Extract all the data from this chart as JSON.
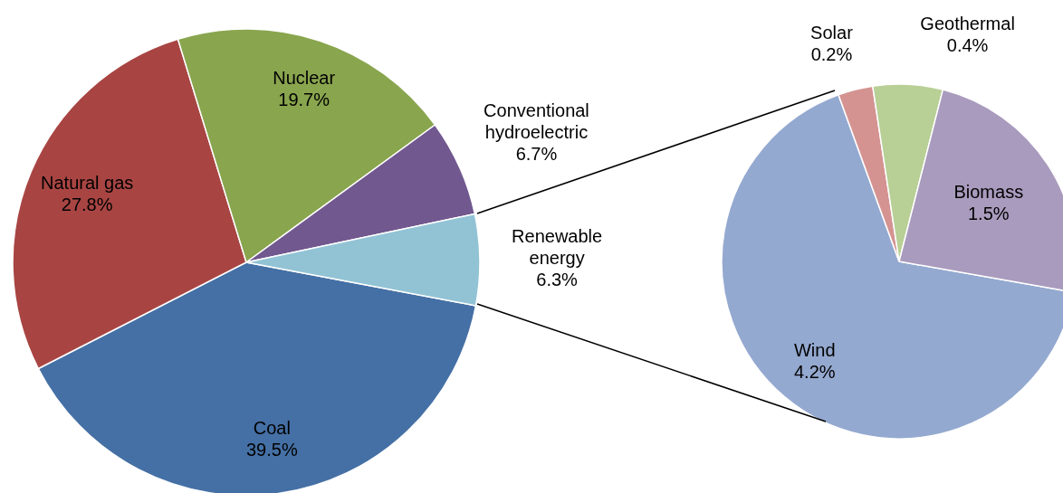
{
  "chart_data": [
    {
      "type": "pie",
      "categories": [
        "Coal",
        "Natural gas",
        "Nuclear",
        "Conventional hydroelectric",
        "Renewable energy"
      ],
      "values": [
        39.5,
        27.8,
        19.7,
        6.7,
        6.3
      ],
      "colors": [
        "#4570a5",
        "#a84543",
        "#89a54e",
        "#71588f",
        "#92c3d5"
      ],
      "value_labels": [
        "39.5%",
        "27.8%",
        "19.7%",
        "6.7%",
        "6.3%"
      ],
      "legend": false
    },
    {
      "type": "pie",
      "categories": [
        "Wind",
        "Solar",
        "Geothermal",
        "Biomass"
      ],
      "values": [
        4.2,
        0.2,
        0.4,
        1.5
      ],
      "colors": [
        "#94a9d0",
        "#d49391",
        "#b8cf96",
        "#a99bbd"
      ],
      "value_labels": [
        "4.2%",
        "0.2%",
        "0.4%",
        "1.5%"
      ],
      "legend": false
    }
  ]
}
